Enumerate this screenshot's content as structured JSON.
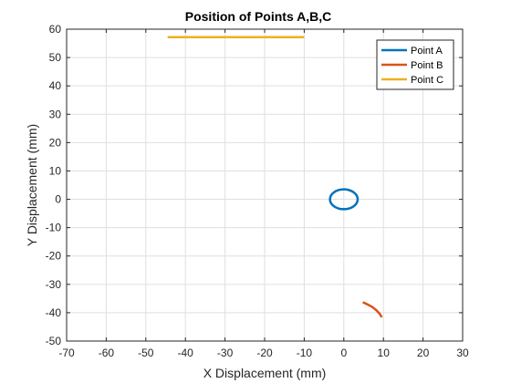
{
  "chart_data": {
    "type": "line",
    "title": "Position of Points A,B,C",
    "xlabel": "X Displacement (mm)",
    "ylabel": "Y Displacement (mm)",
    "xlim": [
      -70,
      30
    ],
    "ylim": [
      -50,
      60
    ],
    "xticks": [
      -70,
      -60,
      -50,
      -40,
      -30,
      -20,
      -10,
      0,
      10,
      20,
      30
    ],
    "yticks": [
      -50,
      -40,
      -30,
      -20,
      -10,
      0,
      10,
      20,
      30,
      40,
      50,
      60
    ],
    "grid": true,
    "legend_position": "top-right",
    "series": [
      {
        "name": "Point A",
        "color": "#0072BD",
        "x": [
          3.5,
          3.03,
          1.75,
          0,
          -1.75,
          -3.03,
          -3.5,
          -3.03,
          -1.75,
          0,
          1.75,
          3.03,
          3.5
        ],
        "y": [
          0,
          1.75,
          3.03,
          3.5,
          3.03,
          1.75,
          0,
          -1.75,
          -3.03,
          -3.5,
          -3.03,
          -1.75,
          0
        ]
      },
      {
        "name": "Point B",
        "color": "#D95319",
        "x": [
          4.8,
          6.0,
          7.2,
          8.2,
          9.0,
          9.6
        ],
        "y": [
          -36.3,
          -37.1,
          -38.0,
          -39.1,
          -40.3,
          -41.6
        ]
      },
      {
        "name": "Point C",
        "color": "#EDB120",
        "x": [
          -44.5,
          -10.0
        ],
        "y": [
          57.2,
          57.2
        ]
      }
    ]
  }
}
